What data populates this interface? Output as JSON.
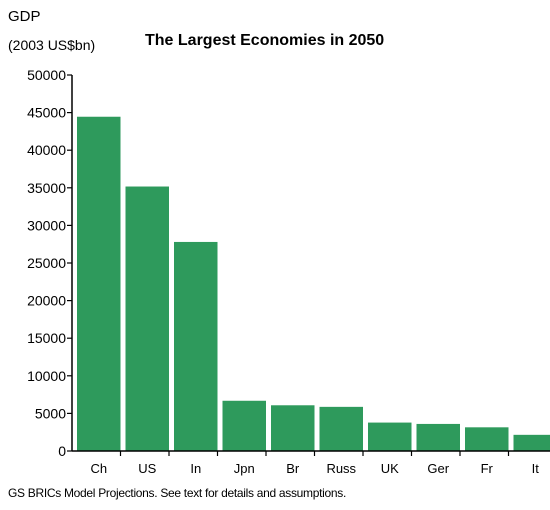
{
  "chart_data": {
    "type": "bar",
    "title": "The Largest Economies in 2050",
    "ylabel": "GDP",
    "ylabel_unit": "(2003 US$bn)",
    "categories": [
      "Ch",
      "US",
      "In",
      "Jpn",
      "Br",
      "Russ",
      "UK",
      "Ger",
      "Fr",
      "It"
    ],
    "values": [
      44450,
      35170,
      27800,
      6680,
      6080,
      5870,
      3780,
      3600,
      3150,
      2150
    ],
    "ylim": [
      0,
      50000
    ],
    "yticks": [
      0,
      5000,
      10000,
      15000,
      20000,
      25000,
      30000,
      35000,
      40000,
      45000,
      50000
    ],
    "bar_color": "#2e9a5c",
    "grid": false,
    "source": "GS BRICs Model Projections. See text for details and assumptions."
  }
}
